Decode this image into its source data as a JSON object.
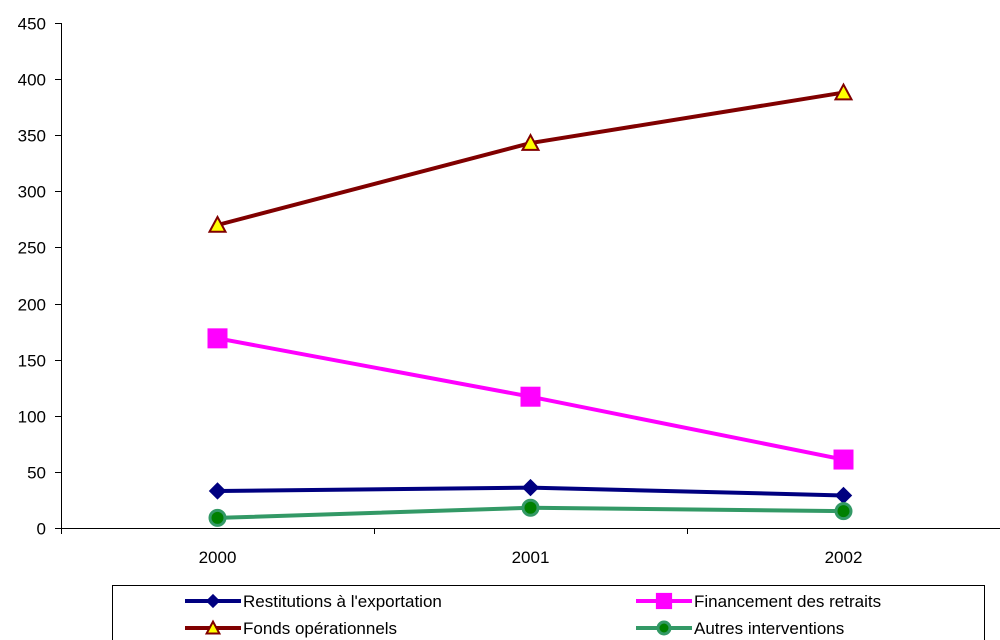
{
  "chart_data": {
    "type": "line",
    "categories": [
      "2000",
      "2001",
      "2002"
    ],
    "ylim": [
      0,
      450
    ],
    "yticks": [
      0,
      50,
      100,
      150,
      200,
      250,
      300,
      350,
      400,
      450
    ],
    "grid": false,
    "legend_position": "bottom",
    "series": [
      {
        "name": "Restitutions à l'exportation",
        "values": [
          33,
          36,
          29
        ],
        "color": "#000080",
        "marker": "diamond"
      },
      {
        "name": "Financement des retraits",
        "values": [
          169,
          117,
          61
        ],
        "color": "#FF00FF",
        "marker": "square"
      },
      {
        "name": "Fonds opérationnels",
        "values": [
          270,
          343,
          388
        ],
        "color": "#800000",
        "marker": "triangle",
        "marker_fill": "#FFFF00"
      },
      {
        "name": "Autres interventions",
        "values": [
          9,
          18,
          15
        ],
        "color": "#339966",
        "marker": "circle",
        "marker_fill": "#008000"
      }
    ]
  }
}
